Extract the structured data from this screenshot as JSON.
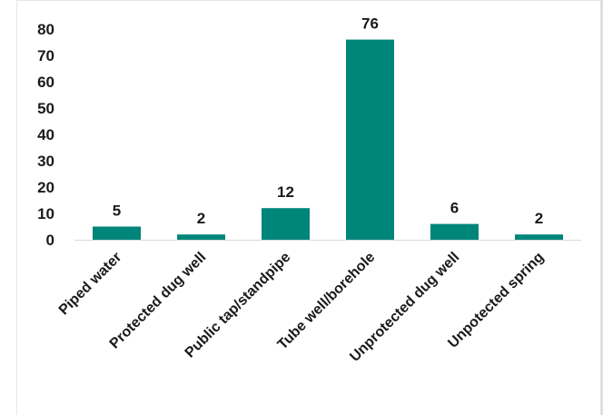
{
  "chart_data": {
    "type": "bar",
    "categories": [
      "Piped water",
      "Protected dug well",
      "Public tap/standpipe",
      "Tube well/borehole",
      "Unprotected dug well",
      "Unpotected spring"
    ],
    "values": [
      5,
      2,
      12,
      76,
      6,
      2
    ],
    "data_labels": [
      "5",
      "2",
      "12",
      "76",
      "6",
      "2"
    ],
    "yticks": [
      "0",
      "10",
      "20",
      "30",
      "40",
      "50",
      "60",
      "70",
      "80"
    ],
    "ylim": [
      0,
      80
    ],
    "grid": false,
    "legend": "none",
    "bar_color": "#00857A"
  }
}
